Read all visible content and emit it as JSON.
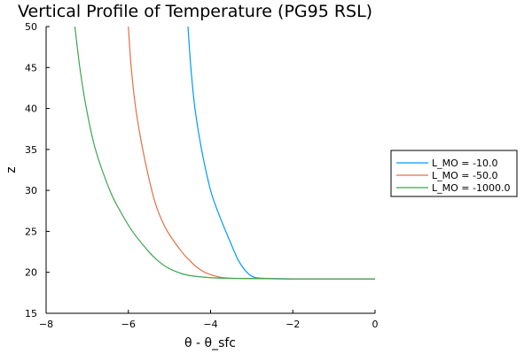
{
  "chart_data": {
    "type": "line",
    "title": "Vertical Profile of Temperature (PG95 RSL)",
    "xlabel": "θ - θ_sfc",
    "ylabel": "z",
    "xlim": [
      -8,
      0
    ],
    "ylim": [
      15,
      50
    ],
    "xticks": [
      -8,
      -6,
      -4,
      -2,
      0
    ],
    "xtick_labels": [
      "−8",
      "−6",
      "−4",
      "−2",
      "0"
    ],
    "yticks": [
      15,
      20,
      25,
      30,
      35,
      40,
      45,
      50
    ],
    "ytick_labels": [
      "15",
      "20",
      "25",
      "30",
      "35",
      "40",
      "45",
      "50"
    ],
    "grid": false,
    "legend_position": "outside-right",
    "series": [
      {
        "name": "L_MO = -10.0",
        "color": "#009AFA",
        "points": [
          [
            -4.55,
            50
          ],
          [
            -4.48,
            45
          ],
          [
            -4.38,
            40
          ],
          [
            -4.22,
            35
          ],
          [
            -4.0,
            30
          ],
          [
            -3.83,
            27.5
          ],
          [
            -3.63,
            25
          ],
          [
            -3.42,
            22.5
          ],
          [
            -3.33,
            21.5
          ],
          [
            -3.2,
            20.5
          ],
          [
            -3.05,
            19.7
          ],
          [
            -2.9,
            19.35
          ],
          [
            -2.6,
            19.25
          ],
          [
            -2.0,
            19.2
          ],
          [
            0,
            19.2
          ]
        ]
      },
      {
        "name": "L_MO = -50.0",
        "color": "#E36F47",
        "points": [
          [
            -6.0,
            50
          ],
          [
            -5.93,
            45
          ],
          [
            -5.82,
            40
          ],
          [
            -5.65,
            35
          ],
          [
            -5.43,
            30
          ],
          [
            -5.28,
            27.5
          ],
          [
            -5.05,
            25
          ],
          [
            -4.7,
            22.5
          ],
          [
            -4.52,
            21.5
          ],
          [
            -4.3,
            20.5
          ],
          [
            -4.05,
            19.8
          ],
          [
            -3.7,
            19.35
          ],
          [
            -3.2,
            19.25
          ],
          [
            -2.0,
            19.2
          ],
          [
            0,
            19.2
          ]
        ]
      },
      {
        "name": "L_MO = -1000.0",
        "color": "#3EA44E",
        "points": [
          [
            -7.3,
            50
          ],
          [
            -7.18,
            45
          ],
          [
            -7.02,
            40
          ],
          [
            -6.8,
            35
          ],
          [
            -6.45,
            30
          ],
          [
            -6.2,
            27.5
          ],
          [
            -5.9,
            25
          ],
          [
            -5.5,
            22.5
          ],
          [
            -5.3,
            21.5
          ],
          [
            -5.02,
            20.5
          ],
          [
            -4.6,
            19.7
          ],
          [
            -4.0,
            19.35
          ],
          [
            -3.3,
            19.25
          ],
          [
            -2.0,
            19.2
          ],
          [
            0,
            19.2
          ]
        ]
      }
    ]
  }
}
